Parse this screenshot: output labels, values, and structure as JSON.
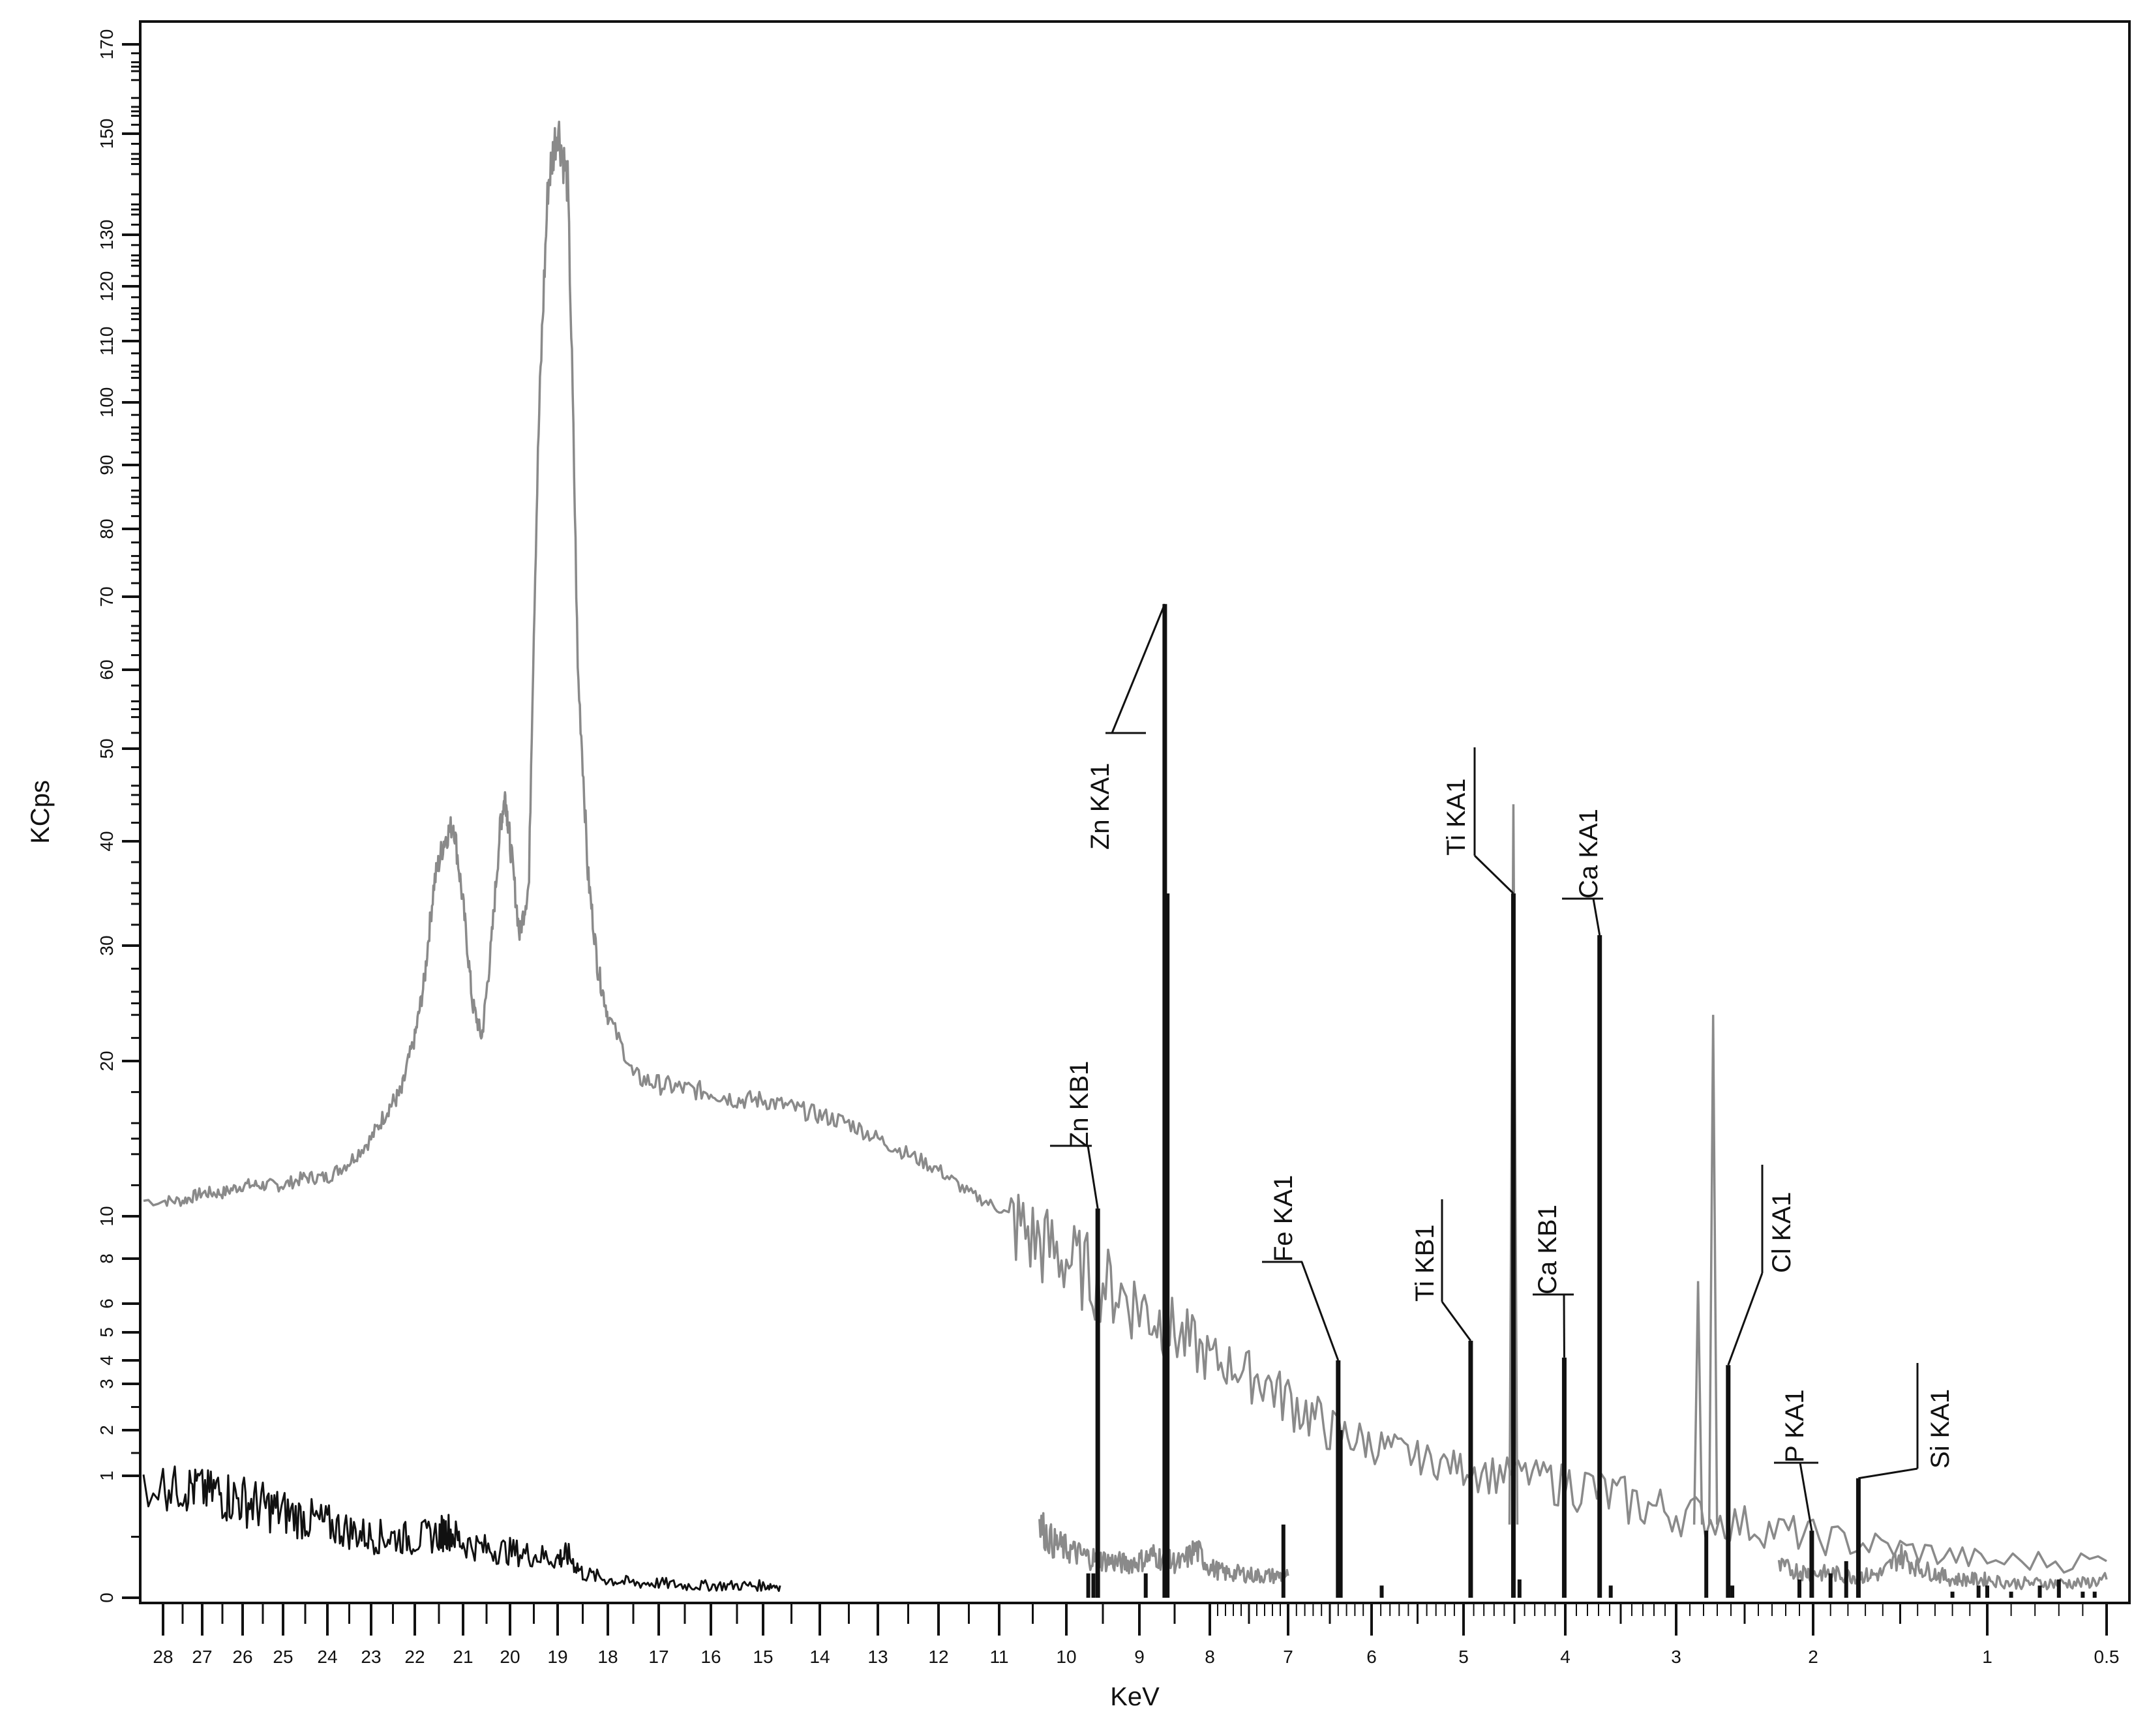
{
  "chart_data": {
    "type": "line",
    "title": "",
    "xlabel": "KeV",
    "ylabel": "KCps",
    "x_axis": {
      "scale": "reversed, nonlinear",
      "direction": "high energy at left, low energy at right",
      "tick_labels": [
        "28",
        "27",
        "26",
        "25",
        "24",
        "23",
        "22",
        "21",
        "20",
        "19",
        "18",
        "17",
        "16",
        "15",
        "14",
        "13",
        "12",
        "11",
        "10",
        "9",
        "8",
        "7",
        "6",
        "5",
        "4",
        "3",
        "2",
        "1",
        "0.5"
      ]
    },
    "y_axis": {
      "scale": "nonlinear (compressed below 10)",
      "range": [
        0,
        170
      ],
      "tick_labels": [
        "0",
        "1",
        "2",
        "3",
        "4",
        "5",
        "6",
        "8",
        "10",
        "20",
        "30",
        "40",
        "50",
        "60",
        "70",
        "80",
        "90",
        "100",
        "110",
        "120",
        "130",
        "150",
        "170"
      ]
    },
    "grid": false,
    "colors": {
      "grey_spectrum": "#8a8a8a",
      "black_spectrum": "#111111"
    },
    "series": [
      {
        "color": "grey",
        "x": [
          28.2,
          27.5,
          27,
          26.5,
          26,
          25.5,
          25,
          24.5,
          24,
          23.5,
          23,
          22.6,
          22.3,
          22,
          21.8,
          21.6,
          21.4,
          21.2,
          21,
          20.8,
          20.6,
          20.4,
          20.2,
          20.1,
          20,
          19.8,
          19.6,
          19.4,
          19.2,
          19.0,
          18.8,
          18.6,
          18.4,
          18.2,
          18,
          17.5,
          17,
          16.5,
          16,
          15.5,
          15,
          14.5,
          14,
          13.5,
          13,
          12.5,
          12,
          11.5,
          11,
          10.5,
          10,
          9.5,
          9,
          8.5,
          8,
          7.5,
          7,
          6.5,
          6,
          5.5,
          5,
          4.5,
          4,
          3.5,
          3,
          2.5,
          2,
          1.5,
          1,
          0.5
        ],
        "y": [
          11,
          11,
          11.5,
          11.5,
          12,
          12,
          12,
          12.5,
          12.5,
          13.5,
          15,
          17,
          18,
          22,
          27,
          36,
          40,
          42,
          34,
          25,
          22,
          30,
          42,
          45,
          40,
          31,
          36,
          95,
          140,
          152,
          140,
          60,
          37,
          28,
          24,
          19,
          18.5,
          18.2,
          18,
          17.5,
          17.5,
          17,
          16.5,
          16,
          15,
          14,
          13,
          11.5,
          10.5,
          9,
          8,
          7,
          6,
          5,
          4,
          3.5,
          2.7,
          2,
          1.7,
          1.4,
          1.2,
          1.1,
          1.0,
          0.8,
          0.7,
          0.6,
          0.5,
          0.4,
          0.3,
          0.3
        ],
        "peaks": [
          {
            "x": 4.51,
            "y": 44
          },
          {
            "x": 2.73,
            "y": 24
          },
          {
            "x": 2.84,
            "y": 7
          }
        ]
      },
      {
        "color": "black",
        "x": [
          28.2,
          27.5,
          27,
          26.5,
          26,
          25.5,
          25,
          24.5,
          24,
          23.5,
          23,
          22.5,
          22,
          21.5,
          21.3,
          21,
          20.5,
          20,
          19.5,
          19,
          18.8,
          18.5,
          18,
          17.5,
          17,
          16.5,
          16,
          15.5,
          15,
          14.7
        ],
        "y": [
          0.98,
          0.95,
          0.9,
          0.85,
          0.8,
          0.75,
          0.7,
          0.65,
          0.6,
          0.55,
          0.5,
          0.5,
          0.48,
          0.52,
          0.55,
          0.45,
          0.4,
          0.38,
          0.35,
          0.32,
          0.35,
          0.2,
          0.15,
          0.12,
          0.12,
          0.1,
          0.1,
          0.1,
          0.1,
          0.1
        ]
      },
      {
        "color": "grey",
        "x": [
          10.4,
          10.2,
          10,
          9.8,
          9.6,
          9.4,
          9.2,
          9,
          8.8,
          8.6,
          8.4,
          8.2,
          8,
          7.8,
          7.6,
          7.4,
          7.2,
          7
        ],
        "y": [
          0.6,
          0.45,
          0.4,
          0.35,
          0.32,
          0.3,
          0.28,
          0.3,
          0.35,
          0.3,
          0.28,
          0.4,
          0.25,
          0.2,
          0.2,
          0.18,
          0.18,
          0.18
        ]
      },
      {
        "color": "grey",
        "x": [
          2.25,
          2.1,
          2.0,
          1.9,
          1.8,
          1.7,
          1.6,
          1.5,
          1.4,
          1.3,
          1.2,
          1.1,
          1.0,
          0.9,
          0.8,
          0.7,
          0.6,
          0.5
        ],
        "y": [
          0.25,
          0.22,
          0.2,
          0.2,
          0.18,
          0.18,
          0.2,
          0.35,
          0.25,
          0.2,
          0.15,
          0.15,
          0.15,
          0.12,
          0.12,
          0.12,
          0.12,
          0.15
        ]
      }
    ],
    "stick_lines": [
      {
        "label": "Zn KA1",
        "x": 8.64,
        "y": 69
      },
      {
        "label": "Zn KB1",
        "x": 9.57,
        "y": 10.5
      },
      {
        "label": "Fe KA1",
        "x": 6.4,
        "y": 4
      },
      {
        "label": "Ti KB1",
        "x": 4.93,
        "y": 4.7
      },
      {
        "label": "Ti KA1",
        "x": 4.51,
        "y": 35
      },
      {
        "label": "Ca KB1",
        "x": 4.01,
        "y": 4.1
      },
      {
        "label": "Ca KA1",
        "x": 3.69,
        "y": 31
      },
      {
        "label": "Cl KA1",
        "x": 2.62,
        "y": 3.8
      },
      {
        "label": "P  KA1",
        "x": 2.01,
        "y": 0.55
      },
      {
        "label": "Si KA1",
        "x": 1.74,
        "y": 0.98
      }
    ],
    "minor_sticks": [
      {
        "x": 9.7,
        "y": 0.2
      },
      {
        "x": 9.63,
        "y": 0.2
      },
      {
        "x": 8.91,
        "y": 0.2
      },
      {
        "x": 8.6,
        "y": 35
      },
      {
        "x": 7.06,
        "y": 0.6
      },
      {
        "x": 6.37,
        "y": 2.0
      },
      {
        "x": 5.89,
        "y": 0.1
      },
      {
        "x": 4.45,
        "y": 0.15
      },
      {
        "x": 3.59,
        "y": 0.1
      },
      {
        "x": 2.78,
        "y": 0.55
      },
      {
        "x": 2.59,
        "y": 0.1
      },
      {
        "x": 2.1,
        "y": 0.15
      },
      {
        "x": 1.9,
        "y": 0.2
      },
      {
        "x": 1.81,
        "y": 0.3
      },
      {
        "x": 1.2,
        "y": 0.05
      },
      {
        "x": 1.05,
        "y": 0.1
      },
      {
        "x": 1.0,
        "y": 0.1
      },
      {
        "x": 0.9,
        "y": 0.05
      },
      {
        "x": 0.78,
        "y": 0.1
      },
      {
        "x": 0.7,
        "y": 0.15
      },
      {
        "x": 0.6,
        "y": 0.05
      },
      {
        "x": 0.55,
        "y": 0.05
      }
    ]
  }
}
